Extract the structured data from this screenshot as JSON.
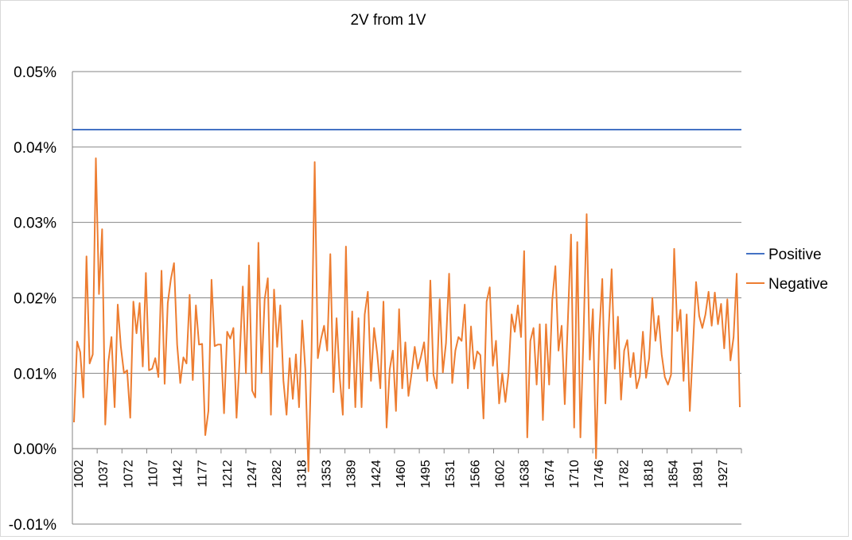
{
  "chart_data": {
    "type": "line",
    "title": "2V from 1V",
    "xlabel": "",
    "ylabel": "",
    "ylim": [
      -0.0001,
      0.0005
    ],
    "ytick_labels": [
      "0.05%",
      "0.04%",
      "0.03%",
      "0.02%",
      "0.01%",
      "0.00%",
      "-0.01%"
    ],
    "ytick_values": [
      0.0005,
      0.0004,
      0.0003,
      0.0002,
      0.0001,
      0.0,
      -0.0001
    ],
    "x_tick_labels": [
      "1002",
      "1037",
      "1072",
      "1107",
      "1142",
      "1177",
      "1212",
      "1247",
      "1282",
      "1318",
      "1353",
      "1389",
      "1424",
      "1460",
      "1495",
      "1531",
      "1566",
      "1602",
      "1638",
      "1674",
      "1710",
      "1746",
      "1782",
      "1818",
      "1854",
      "1891",
      "1927"
    ],
    "grid": true,
    "legend_position": "right",
    "colors": {
      "Positive": "#4472c4",
      "Negative": "#ed7d31"
    },
    "series": [
      {
        "name": "Positive",
        "values": "constant",
        "value": 0.000423
      },
      {
        "name": "Negative",
        "values": [
          3.5e-05,
          0.000142,
          0.000128,
          6.8e-05,
          0.000255,
          0.000113,
          0.000125,
          0.000385,
          0.000205,
          0.000291,
          3.2e-05,
          0.000115,
          0.000148,
          5.5e-05,
          0.000191,
          0.000135,
          0.0001,
          0.000104,
          4.1e-05,
          0.000195,
          0.000153,
          0.000193,
          0.000109,
          0.000233,
          0.000104,
          0.000106,
          0.00012,
          9.5e-05,
          0.000236,
          8.6e-05,
          0.000193,
          0.000225,
          0.000246,
          0.000138,
          8.7e-05,
          0.000121,
          0.000113,
          0.000204,
          9.1e-05,
          0.00019,
          0.000138,
          0.000139,
          1.8e-05,
          5e-05,
          0.000224,
          0.000136,
          0.000138,
          0.000138,
          4.7e-05,
          0.000155,
          0.000146,
          0.00016,
          4.1e-05,
          0.00012,
          0.000215,
          0.0001,
          0.000243,
          7.7e-05,
          6.8e-05,
          0.000273,
          0.0001,
          0.000198,
          0.000226,
          4.5e-05,
          0.000211,
          0.000135,
          0.00019,
          9e-05,
          4.5e-05,
          0.00012,
          6.6e-05,
          0.000125,
          5.5e-05,
          0.00017,
          0.000105,
          -3e-05,
          0.00013,
          0.00038,
          0.00012,
          0.000145,
          0.000163,
          0.00013,
          0.000258,
          7.5e-05,
          0.000173,
          9.5e-05,
          4.5e-05,
          0.000268,
          8e-05,
          0.000182,
          5.5e-05,
          0.000173,
          5.5e-05,
          0.000178,
          0.000208,
          9e-05,
          0.00016,
          0.000126,
          8e-05,
          0.000195,
          2.8e-05,
          0.000105,
          0.00013,
          5e-05,
          0.000185,
          8e-05,
          0.000141,
          7e-05,
          0.0001,
          0.000135,
          0.000106,
          0.000122,
          0.000141,
          9e-05,
          0.000223,
          9.8e-05,
          8e-05,
          0.000198,
          0.000101,
          0.00014,
          0.000232,
          8.7e-05,
          0.00013,
          0.000148,
          0.000143,
          0.000191,
          8e-05,
          0.000162,
          0.000106,
          0.000129,
          0.000124,
          4e-05,
          0.000195,
          0.000214,
          0.00011,
          0.000143,
          6e-05,
          0.0001,
          6.2e-05,
          0.0001,
          0.000178,
          0.000155,
          0.00019,
          0.000148,
          0.000262,
          1.5e-05,
          0.000143,
          0.00016,
          8.5e-05,
          0.000165,
          3.8e-05,
          0.000165,
          8.5e-05,
          0.000197,
          0.000242,
          0.00013,
          0.000163,
          5.9e-05,
          0.000171,
          0.000284,
          2.8e-05,
          0.000274,
          1.5e-05,
          0.00015,
          0.000311,
          0.000118,
          0.000185,
          -1.3e-05,
          0.00015,
          0.000225,
          6e-05,
          0.000155,
          0.000238,
          0.000106,
          0.000175,
          6.5e-05,
          0.00013,
          0.000144,
          9.5e-05,
          0.000127,
          8e-05,
          9.6e-05,
          0.000155,
          9.4e-05,
          0.00012,
          0.0002,
          0.000143,
          0.000176,
          0.000125,
          9.5e-05,
          8.5e-05,
          9.8e-05,
          0.000265,
          0.000156,
          0.000184,
          9e-05,
          0.000178,
          5e-05,
          0.000134,
          0.000221,
          0.000176,
          0.00016,
          0.000178,
          0.000208,
          0.000163,
          0.000207,
          0.000165,
          0.000192,
          0.000133,
          0.000198,
          0.000117,
          0.000148,
          0.000232,
          5.5e-05
        ]
      }
    ]
  }
}
